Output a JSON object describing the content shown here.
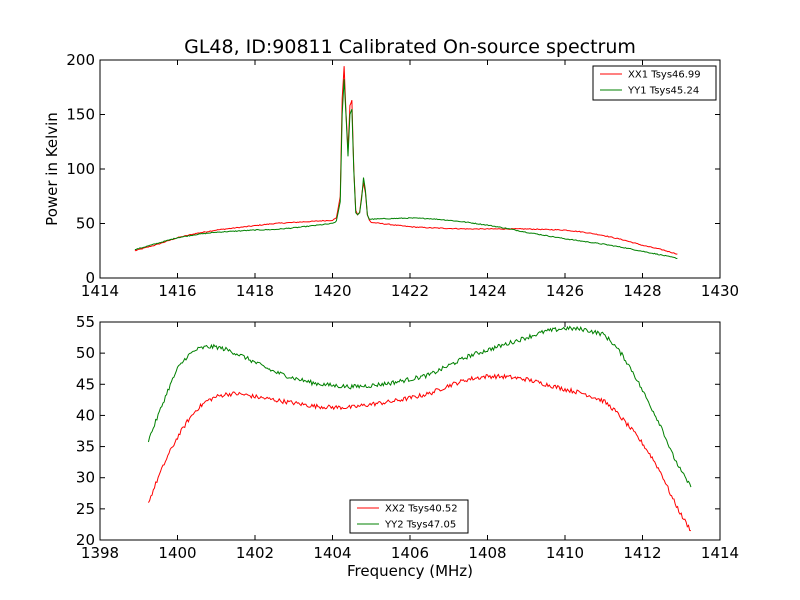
{
  "title": "GL48, ID:90811 Calibrated On-source spectrum",
  "colors": {
    "xx": "#ff0000",
    "yy": "#008000"
  },
  "chart_data": [
    {
      "type": "line",
      "ylabel": "Power in Kelvin",
      "xlim": [
        1414,
        1430
      ],
      "ylim": [
        0,
        200
      ],
      "xticks": [
        "1414",
        "1416",
        "1418",
        "1420",
        "1422",
        "1424",
        "1426",
        "1428",
        "1430"
      ],
      "yticks": [
        "0",
        "50",
        "100",
        "150",
        "200"
      ],
      "legend_position": "upper right",
      "series": [
        {
          "name": "XX1 Tsys46.99",
          "color": "#ff0000",
          "x": [
            1414.9,
            1415.5,
            1416,
            1416.5,
            1417,
            1417.5,
            1418,
            1418.5,
            1419,
            1419.5,
            1420,
            1420.1,
            1420.2,
            1420.25,
            1420.3,
            1420.35,
            1420.4,
            1420.45,
            1420.5,
            1420.55,
            1420.6,
            1420.65,
            1420.7,
            1420.75,
            1420.8,
            1420.85,
            1420.9,
            1420.95,
            1421,
            1421.5,
            1422,
            1422.5,
            1423,
            1423.5,
            1424,
            1424.5,
            1425,
            1425.5,
            1426,
            1426.5,
            1427,
            1427.5,
            1428,
            1428.5,
            1428.9
          ],
          "y": [
            25,
            31,
            37,
            41,
            44,
            46,
            48,
            50,
            51,
            52,
            53,
            55,
            75,
            165,
            194,
            150,
            118,
            158,
            163,
            100,
            62,
            58,
            60,
            75,
            88,
            78,
            58,
            53,
            51,
            49,
            47,
            46,
            45.5,
            45,
            45,
            45,
            45,
            44.5,
            44,
            42,
            39,
            35,
            30,
            26,
            22
          ]
        },
        {
          "name": "YY1 Tsys45.24",
          "color": "#008000",
          "x": [
            1414.9,
            1415.5,
            1416,
            1416.5,
            1417,
            1417.5,
            1418,
            1418.5,
            1419,
            1419.5,
            1420,
            1420.1,
            1420.2,
            1420.25,
            1420.3,
            1420.35,
            1420.4,
            1420.45,
            1420.5,
            1420.55,
            1420.6,
            1420.65,
            1420.7,
            1420.75,
            1420.8,
            1420.85,
            1420.9,
            1420.95,
            1421,
            1421.5,
            1422,
            1422.5,
            1423,
            1423.5,
            1424,
            1424.5,
            1425,
            1425.5,
            1426,
            1426.5,
            1427,
            1427.5,
            1428,
            1428.5,
            1428.9
          ],
          "y": [
            26,
            32,
            37,
            40,
            42,
            43,
            44,
            44.5,
            46,
            48,
            50,
            52,
            70,
            150,
            182,
            148,
            112,
            150,
            155,
            98,
            60,
            58,
            60,
            72,
            92,
            80,
            58,
            54,
            54,
            54.5,
            55,
            54.5,
            53,
            51,
            48.5,
            45.5,
            42,
            39,
            36,
            33.5,
            31,
            28,
            24.5,
            21,
            18
          ]
        }
      ]
    },
    {
      "type": "line",
      "xlabel": "Frequency (MHz)",
      "xlim": [
        1398,
        1414
      ],
      "ylim": [
        20,
        55
      ],
      "xticks": [
        "1398",
        "1400",
        "1402",
        "1404",
        "1406",
        "1408",
        "1410",
        "1412",
        "1414"
      ],
      "yticks": [
        "20",
        "25",
        "30",
        "35",
        "40",
        "45",
        "50",
        "55"
      ],
      "legend_position": "lower center",
      "series": [
        {
          "name": "XX2 Tsys40.52",
          "color": "#ff0000",
          "x": [
            1399.25,
            1399.5,
            1399.75,
            1400,
            1400.25,
            1400.5,
            1400.75,
            1401,
            1401.25,
            1401.5,
            1401.75,
            1402,
            1402.5,
            1403,
            1403.5,
            1404,
            1404.5,
            1405,
            1405.5,
            1406,
            1406.5,
            1407,
            1407.5,
            1408,
            1408.5,
            1409,
            1409.5,
            1410,
            1410.5,
            1411,
            1411.25,
            1411.5,
            1411.75,
            1412,
            1412.25,
            1412.5,
            1412.75,
            1413,
            1413.25
          ],
          "y": [
            26,
            30,
            33.5,
            36.5,
            39,
            41,
            42.3,
            43,
            43.4,
            43.5,
            43.3,
            43,
            42.5,
            42,
            41.5,
            41.3,
            41.3,
            41.8,
            42.2,
            42.8,
            43.5,
            44.8,
            45.8,
            46.3,
            46.2,
            45.8,
            45,
            44.2,
            43.5,
            42.3,
            41,
            39.3,
            37.5,
            35.5,
            33.2,
            30.5,
            27,
            24,
            21.5
          ]
        },
        {
          "name": "YY2 Tsys47.05",
          "color": "#008000",
          "x": [
            1399.25,
            1399.5,
            1399.75,
            1400,
            1400.25,
            1400.5,
            1400.75,
            1401,
            1401.25,
            1401.5,
            1401.75,
            1402,
            1402.5,
            1403,
            1403.5,
            1404,
            1404.5,
            1405,
            1405.5,
            1406,
            1406.5,
            1407,
            1407.5,
            1408,
            1408.5,
            1409,
            1409.5,
            1410,
            1410.5,
            1411,
            1411.25,
            1411.5,
            1411.75,
            1412,
            1412.25,
            1412.5,
            1412.75,
            1413,
            1413.25
          ],
          "y": [
            36,
            40,
            44,
            47.5,
            49.5,
            50.6,
            51,
            51,
            50.6,
            50,
            49.3,
            48.5,
            47,
            46,
            45.2,
            44.8,
            44.6,
            44.8,
            45.2,
            45.8,
            46.5,
            48,
            49.5,
            50.5,
            51.5,
            52.5,
            53.5,
            54,
            53.8,
            53,
            51.5,
            49.5,
            47,
            44,
            41,
            38,
            34,
            31,
            28.5
          ]
        }
      ]
    }
  ]
}
